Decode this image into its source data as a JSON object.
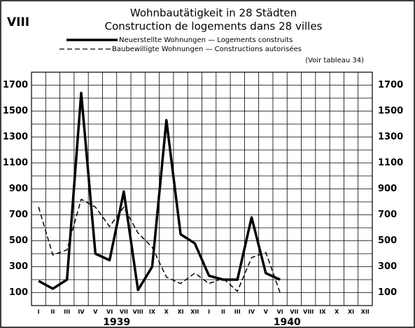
{
  "chart_data": {
    "type": "line",
    "label": "VIII",
    "title": "Wohnbautätigkeit in 28 Städten",
    "subtitle": "Construction de logements dans 28 villes",
    "annotation": "(Voir tableau 34)",
    "categories": [
      "I",
      "II",
      "III",
      "IV",
      "V",
      "VI",
      "VII",
      "VIII",
      "IX",
      "X",
      "XI",
      "XII",
      "I",
      "II",
      "III",
      "IV",
      "V",
      "VI",
      "VII",
      "VIII",
      "IX",
      "X",
      "XI",
      "XII"
    ],
    "years": [
      "1939",
      "1940"
    ],
    "series": [
      {
        "name": "Neuerstellte Wohnungen — Logements construits",
        "color": "#000000",
        "dash": "solid",
        "values": [
          190,
          130,
          200,
          1640,
          400,
          350,
          880,
          120,
          300,
          1430,
          550,
          480,
          230,
          200,
          200,
          680,
          250,
          200,
          null,
          null,
          null,
          null,
          null,
          null
        ]
      },
      {
        "name": "Baubewilligte Wohnungen — Constructions autorisées",
        "color": "#000000",
        "dash": "dashed",
        "values": [
          760,
          390,
          430,
          820,
          760,
          610,
          760,
          560,
          450,
          220,
          170,
          250,
          170,
          210,
          110,
          370,
          410,
          100,
          null,
          null,
          null,
          null,
          null,
          null
        ]
      }
    ],
    "ylim": [
      0,
      1800
    ],
    "yticks": [
      100,
      300,
      500,
      700,
      900,
      1100,
      1300,
      1500,
      1700
    ],
    "minor_yticks": [
      200,
      400,
      600,
      800,
      1000,
      1200,
      1400,
      1600,
      1800
    ],
    "grid": true
  }
}
